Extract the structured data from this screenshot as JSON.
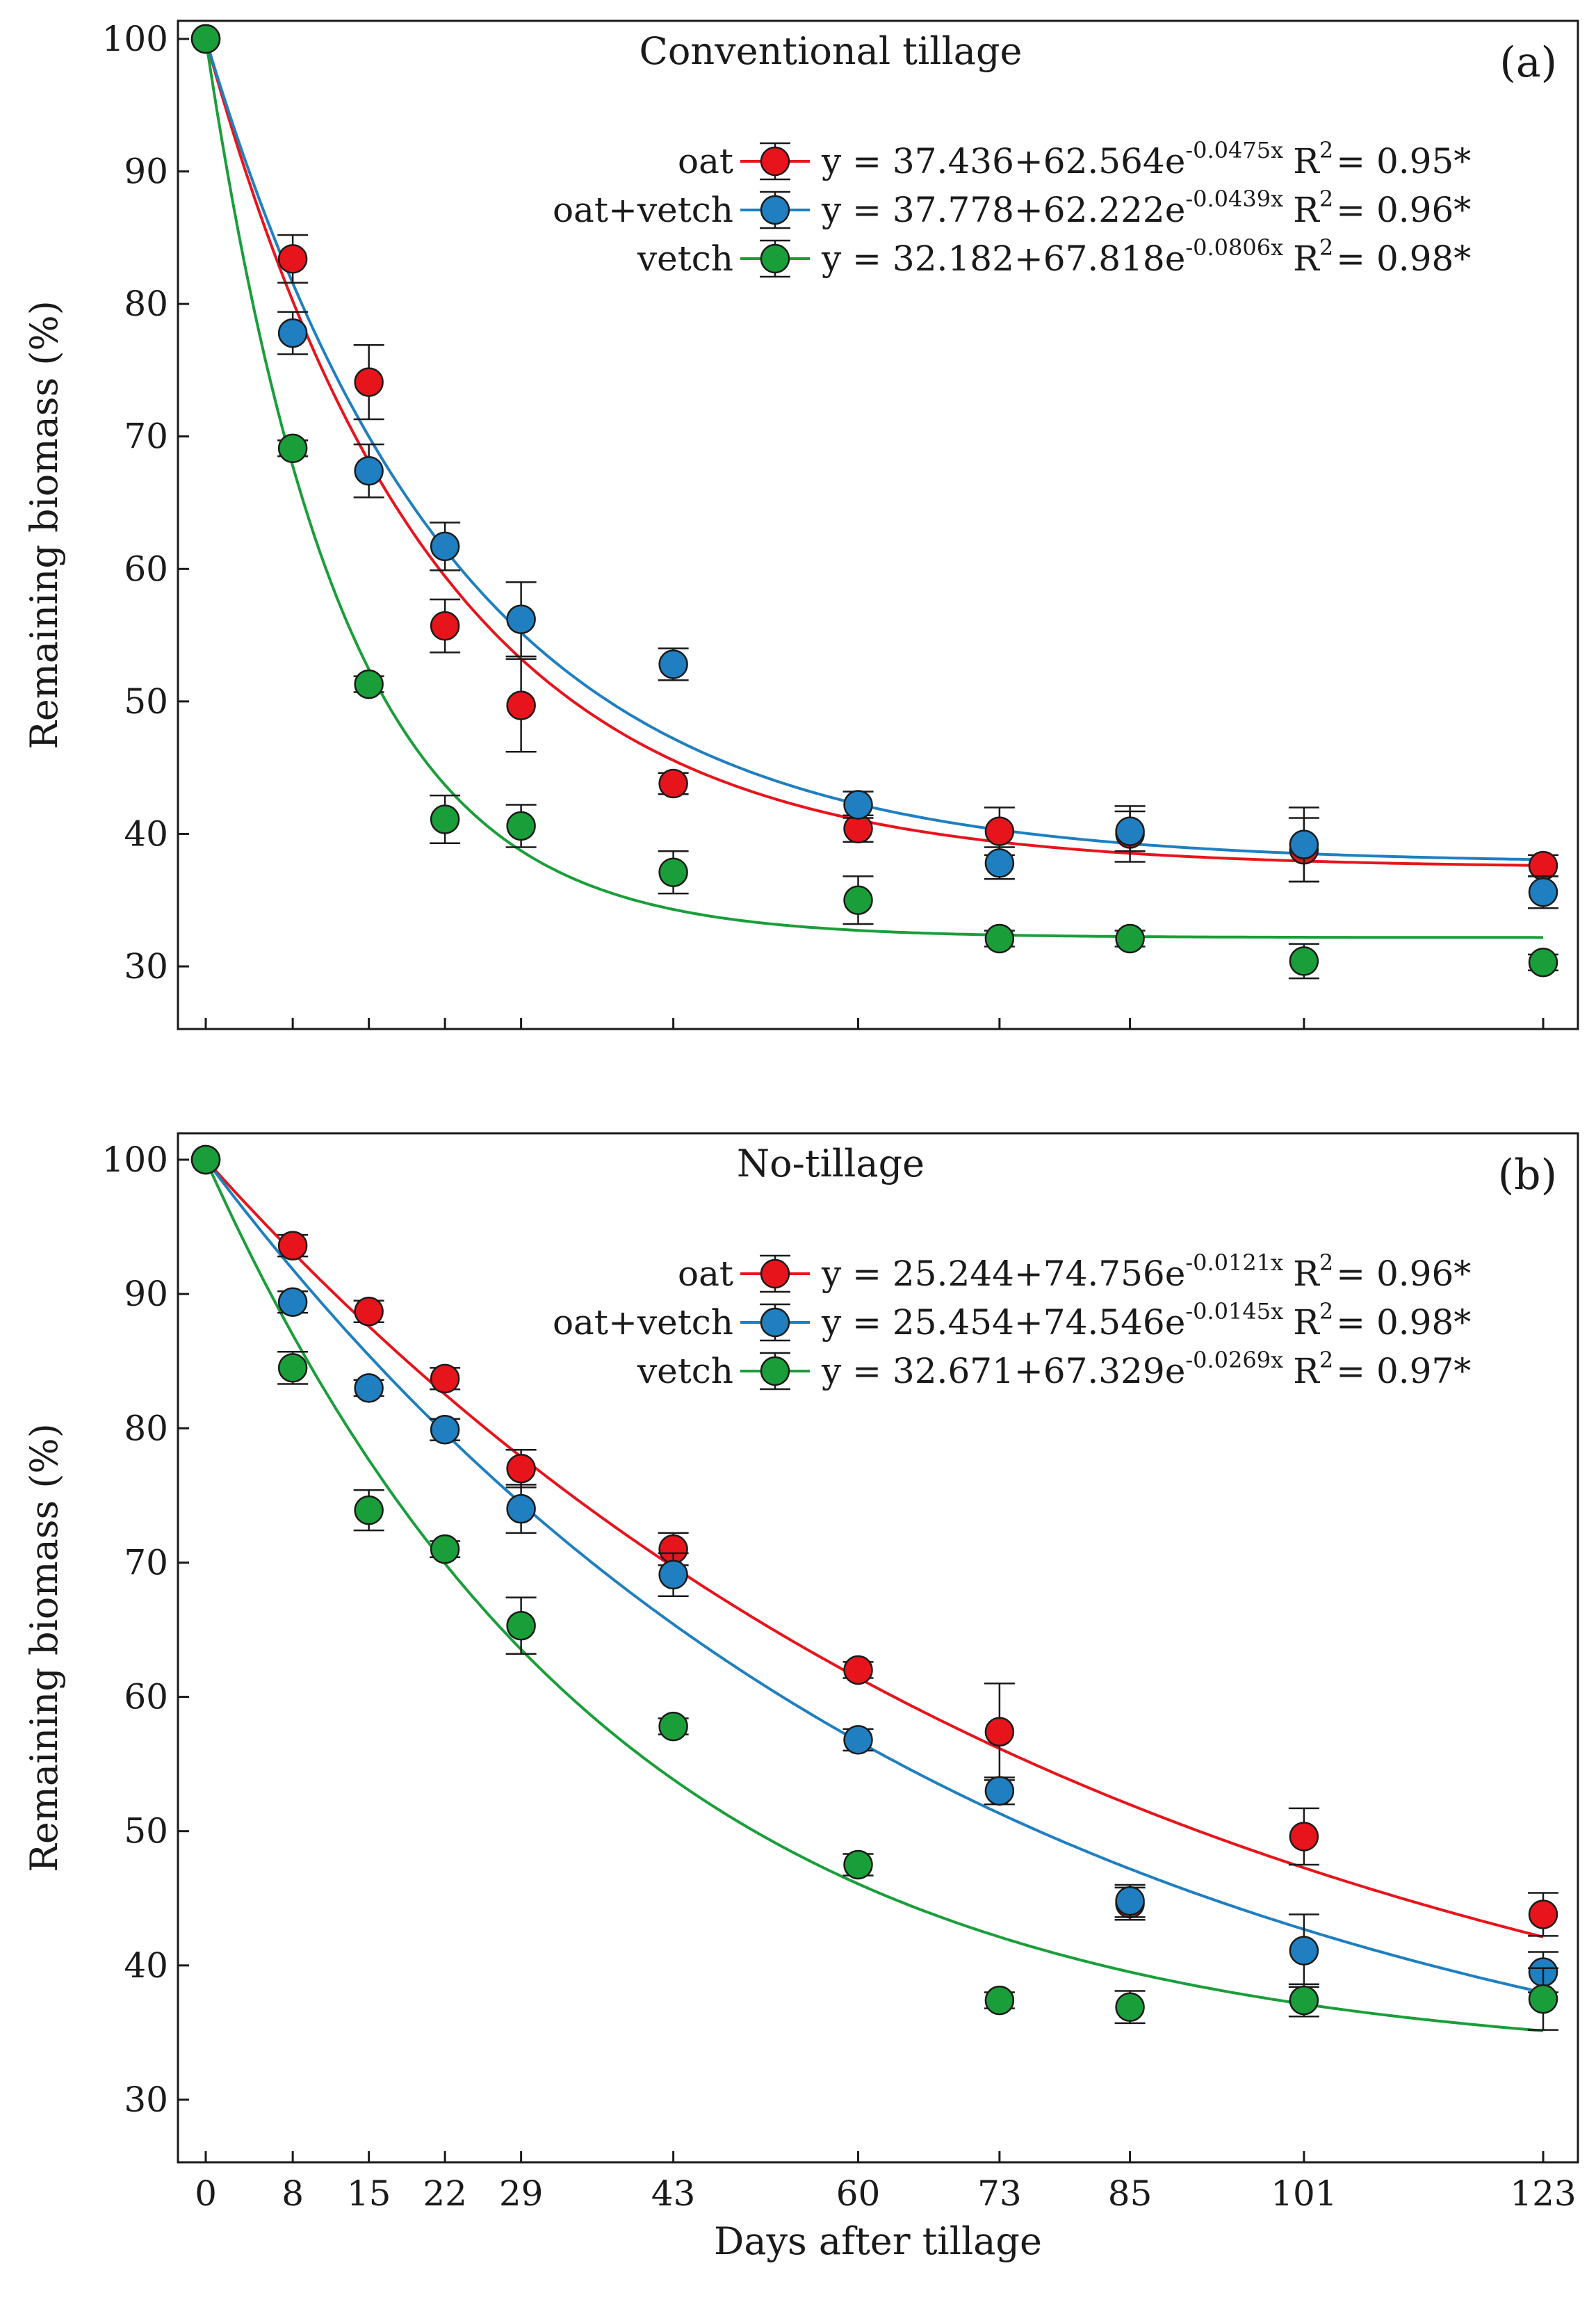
{
  "chart_data": [
    {
      "type": "scatter",
      "panel": "(a)",
      "title": "Conventional tillage",
      "xlabel": "",
      "ylabel": "Remaining biomass (%)",
      "ylim": [
        25,
        102
      ],
      "yticks": [
        30,
        40,
        50,
        60,
        70,
        80,
        90,
        100
      ],
      "legend_position": "top-right",
      "x": [
        0,
        8,
        15,
        22,
        29,
        43,
        60,
        73,
        85,
        101,
        123
      ],
      "series": [
        {
          "name": "oat",
          "color": "#e8141c",
          "values": [
            100,
            83.4,
            74.1,
            55.7,
            49.7,
            43.8,
            40.4,
            40.2,
            40.0,
            38.8,
            37.6
          ],
          "errors": [
            0,
            1.8,
            2.8,
            2.0,
            3.5,
            0.8,
            1.0,
            1.8,
            2.1,
            2.4,
            0.8
          ],
          "fit": {
            "a": 37.436,
            "b": 62.564,
            "k": 0.0475
          },
          "equation": {
            "prefix": "y = 37.436+62.564e",
            "exponent": "-0.0475x",
            "r2_label": "R",
            "r2_sup": "2",
            "r2_value": "= 0.95*"
          }
        },
        {
          "name": "oat+vetch",
          "color": "#1f7fc0",
          "values": [
            100,
            77.8,
            67.4,
            61.7,
            56.2,
            52.8,
            42.2,
            37.8,
            40.2,
            39.2,
            35.6
          ],
          "errors": [
            0,
            1.6,
            2.0,
            1.8,
            2.8,
            1.2,
            1.0,
            1.2,
            1.5,
            2.8,
            1.2
          ],
          "fit": {
            "a": 37.778,
            "b": 62.222,
            "k": 0.0439
          },
          "equation": {
            "prefix": "y = 37.778+62.222e",
            "exponent": "-0.0439x",
            "r2_label": "R",
            "r2_sup": "2",
            "r2_value": "= 0.96*"
          }
        },
        {
          "name": "vetch",
          "color": "#1a9e3a",
          "values": [
            100,
            69.1,
            51.3,
            41.1,
            40.6,
            37.1,
            35.0,
            32.1,
            32.1,
            30.4,
            30.3
          ],
          "errors": [
            0,
            0.6,
            0.6,
            1.8,
            1.6,
            1.6,
            1.8,
            0.6,
            0.6,
            1.3,
            0.6
          ],
          "fit": {
            "a": 32.182,
            "b": 67.818,
            "k": 0.0806
          },
          "equation": {
            "prefix": "y = 32.182+67.818e",
            "exponent": "-0.0806x",
            "r2_label": "R",
            "r2_sup": "2",
            "r2_value": "= 0.98*"
          }
        }
      ]
    },
    {
      "type": "scatter",
      "panel": "(b)",
      "title": "No-tillage",
      "xlabel": "Days after tillage",
      "ylabel": "Remaining biomass (%)",
      "ylim": [
        25,
        102
      ],
      "yticks": [
        30,
        40,
        50,
        60,
        70,
        80,
        90,
        100
      ],
      "legend_position": "top-right",
      "x": [
        0,
        8,
        15,
        22,
        29,
        43,
        60,
        73,
        85,
        101,
        123
      ],
      "series": [
        {
          "name": "oat",
          "color": "#e8141c",
          "values": [
            100,
            93.6,
            88.7,
            83.7,
            77.0,
            71.0,
            62.0,
            57.4,
            44.6,
            49.6,
            43.8
          ],
          "errors": [
            0,
            0.8,
            0.8,
            0.8,
            1.4,
            1.2,
            0.6,
            3.6,
            1.2,
            2.1,
            1.6
          ],
          "fit": {
            "a": 25.244,
            "b": 74.756,
            "k": 0.0121
          },
          "equation": {
            "prefix": "y = 25.244+74.756e",
            "exponent": "-0.0121x",
            "r2_label": "R",
            "r2_sup": "2",
            "r2_value": "= 0.96*"
          }
        },
        {
          "name": "oat+vetch",
          "color": "#1f7fc0",
          "values": [
            100,
            89.4,
            83.0,
            79.9,
            74.0,
            69.1,
            56.8,
            53.0,
            44.8,
            41.1,
            39.5
          ],
          "errors": [
            0,
            0.8,
            0.6,
            0.8,
            1.8,
            1.6,
            0.8,
            1.0,
            1.2,
            2.7,
            1.5
          ],
          "fit": {
            "a": 25.454,
            "b": 74.546,
            "k": 0.0145
          },
          "equation": {
            "prefix": "y = 25.454+74.546e",
            "exponent": "-0.0145x",
            "r2_label": "R",
            "r2_sup": "2",
            "r2_value": "= 0.98*"
          }
        },
        {
          "name": "vetch",
          "color": "#1a9e3a",
          "values": [
            100,
            84.5,
            73.9,
            71.0,
            65.3,
            57.8,
            47.5,
            37.4,
            36.9,
            37.4,
            37.5
          ],
          "errors": [
            0,
            1.2,
            1.5,
            0.6,
            2.1,
            0.6,
            0.8,
            0.6,
            1.2,
            1.2,
            2.3
          ],
          "fit": {
            "a": 32.671,
            "b": 67.329,
            "k": 0.0269
          },
          "equation": {
            "prefix": "y = 32.671+67.329e",
            "exponent": "-0.0269x",
            "r2_label": "R",
            "r2_sup": "2",
            "r2_value": "= 0.97*"
          }
        }
      ]
    }
  ]
}
